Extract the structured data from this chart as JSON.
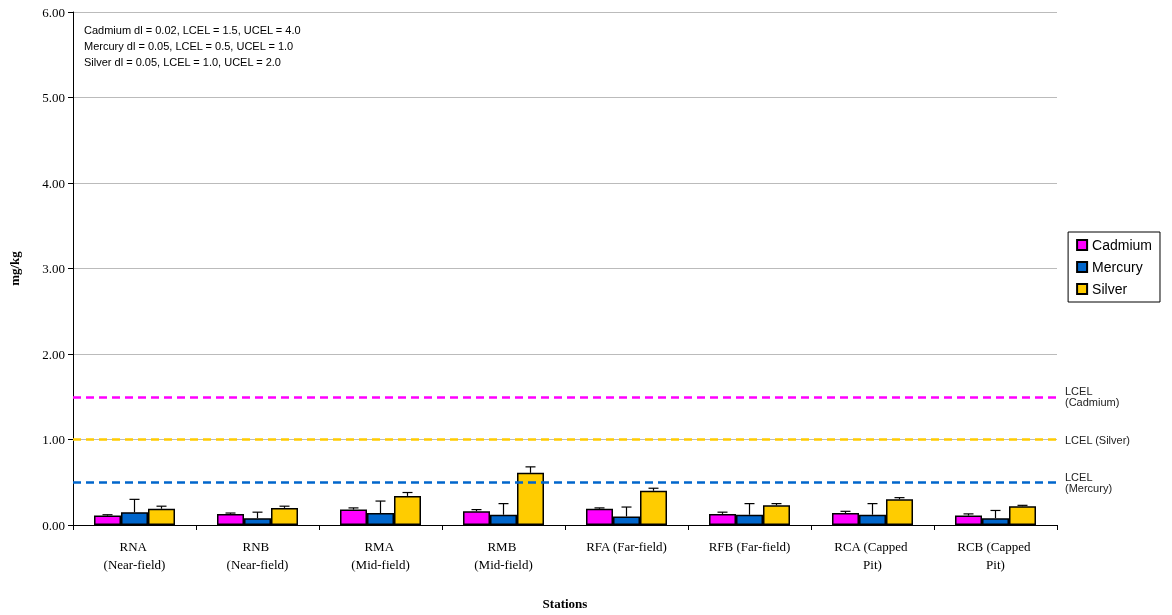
{
  "chart_data": {
    "type": "bar",
    "xlabel": "Stations",
    "ylabel": "mg/kg",
    "categories": [
      "RNA (Near-field)",
      "RNB (Near-field)",
      "RMA (Mid-field)",
      "RMB (Mid-field)",
      "RFA (Far-field)",
      "RFB (Far-field)",
      "RCA (Capped Pit)",
      "RCB (Capped Pit)"
    ],
    "series": [
      {
        "name": "Cadmium",
        "color": "#ff00ff",
        "values": [
          0.11,
          0.13,
          0.18,
          0.16,
          0.19,
          0.13,
          0.14,
          0.11
        ],
        "errors": [
          [
            0.11,
            0.12
          ],
          [
            0.13,
            0.14
          ],
          [
            0.18,
            0.2
          ],
          [
            0.16,
            0.18
          ],
          [
            0.19,
            0.2
          ],
          [
            0.13,
            0.15
          ],
          [
            0.14,
            0.16
          ],
          [
            0.11,
            0.13
          ]
        ]
      },
      {
        "name": "Mercury",
        "color": "#0066cc",
        "values": [
          0.15,
          0.08,
          0.14,
          0.12,
          0.1,
          0.12,
          0.12,
          0.08
        ],
        "errors": [
          [
            0.15,
            0.3
          ],
          [
            0.08,
            0.15
          ],
          [
            0.14,
            0.28
          ],
          [
            0.12,
            0.25
          ],
          [
            0.1,
            0.21
          ],
          [
            0.12,
            0.25
          ],
          [
            0.12,
            0.25
          ],
          [
            0.08,
            0.17
          ]
        ]
      },
      {
        "name": "Silver",
        "color": "#ffcc00",
        "values": [
          0.19,
          0.2,
          0.34,
          0.61,
          0.4,
          0.23,
          0.3,
          0.22
        ],
        "errors": [
          [
            0.19,
            0.22
          ],
          [
            0.2,
            0.22
          ],
          [
            0.34,
            0.38
          ],
          [
            0.61,
            0.68
          ],
          [
            0.4,
            0.43
          ],
          [
            0.23,
            0.25
          ],
          [
            0.3,
            0.32
          ],
          [
            0.22,
            0.23
          ]
        ]
      }
    ],
    "ylim": [
      0,
      6
    ],
    "yticks": [
      {
        "value": 0,
        "label": "0.00"
      },
      {
        "value": 1,
        "label": "1.00"
      },
      {
        "value": 2,
        "label": "2.00"
      },
      {
        "value": 3,
        "label": "3.00"
      },
      {
        "value": 4,
        "label": "4.00"
      },
      {
        "value": 5,
        "label": "5.00"
      },
      {
        "value": 6,
        "label": "6.00"
      }
    ],
    "ref_lines": [
      {
        "axis": "y",
        "value": 1.5,
        "label": "LCEL (Cadmium)",
        "color": "#ff00ff",
        "line_style": "dashed"
      },
      {
        "axis": "y",
        "value": 1.0,
        "label": "LCEL (Silver)",
        "color": "#ffcc00",
        "line_style": "dashed"
      },
      {
        "axis": "y",
        "value": 0.5,
        "label": "LCEL (Mercury)",
        "color": "#0066cc",
        "line_style": "dashed"
      }
    ],
    "annotations": [
      "Cadmium dl = 0.02, LCEL = 1.5, UCEL = 4.0",
      "Mercury dl = 0.05, LCEL = 0.5, UCEL = 1.0",
      "Silver dl = 0.05, LCEL = 1.0, UCEL = 2.0"
    ],
    "grid": "y",
    "legend": "right"
  }
}
